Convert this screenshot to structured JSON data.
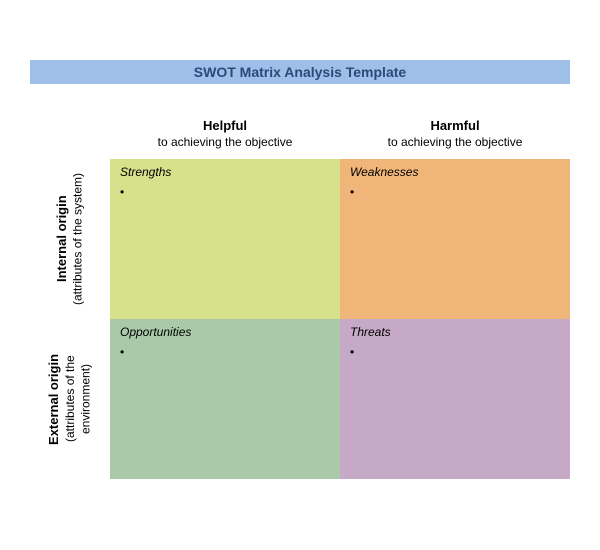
{
  "title": "SWOT Matrix Analysis Template",
  "title_bar_bg": "#9dbfe8",
  "title_color": "#2a4a7a",
  "columns": [
    {
      "bold": "Helpful",
      "sub": "to achieving the objective"
    },
    {
      "bold": "Harmful",
      "sub": "to achieving the objective"
    }
  ],
  "rows": [
    {
      "bold": "Internal origin",
      "sub": "(attributes of the\nsystem)"
    },
    {
      "bold": "External origin",
      "sub": "(attributes of the\nenvironment)"
    }
  ],
  "quadrants": {
    "strengths": {
      "label": "Strengths",
      "bg": "#d7e08a",
      "bullet": "•"
    },
    "weaknesses": {
      "label": "Weaknesses",
      "bg": "#f0b679",
      "bullet": "•"
    },
    "opportunities": {
      "label": "Opportunities",
      "bg": "#a9c9a9",
      "bullet": "•"
    },
    "threats": {
      "label": "Threats",
      "bg": "#c6a9c6",
      "bullet": "•"
    }
  },
  "fonts": {
    "title_size": 14,
    "header_bold_size": 13,
    "header_sub_size": 12,
    "quad_title_size": 12
  }
}
